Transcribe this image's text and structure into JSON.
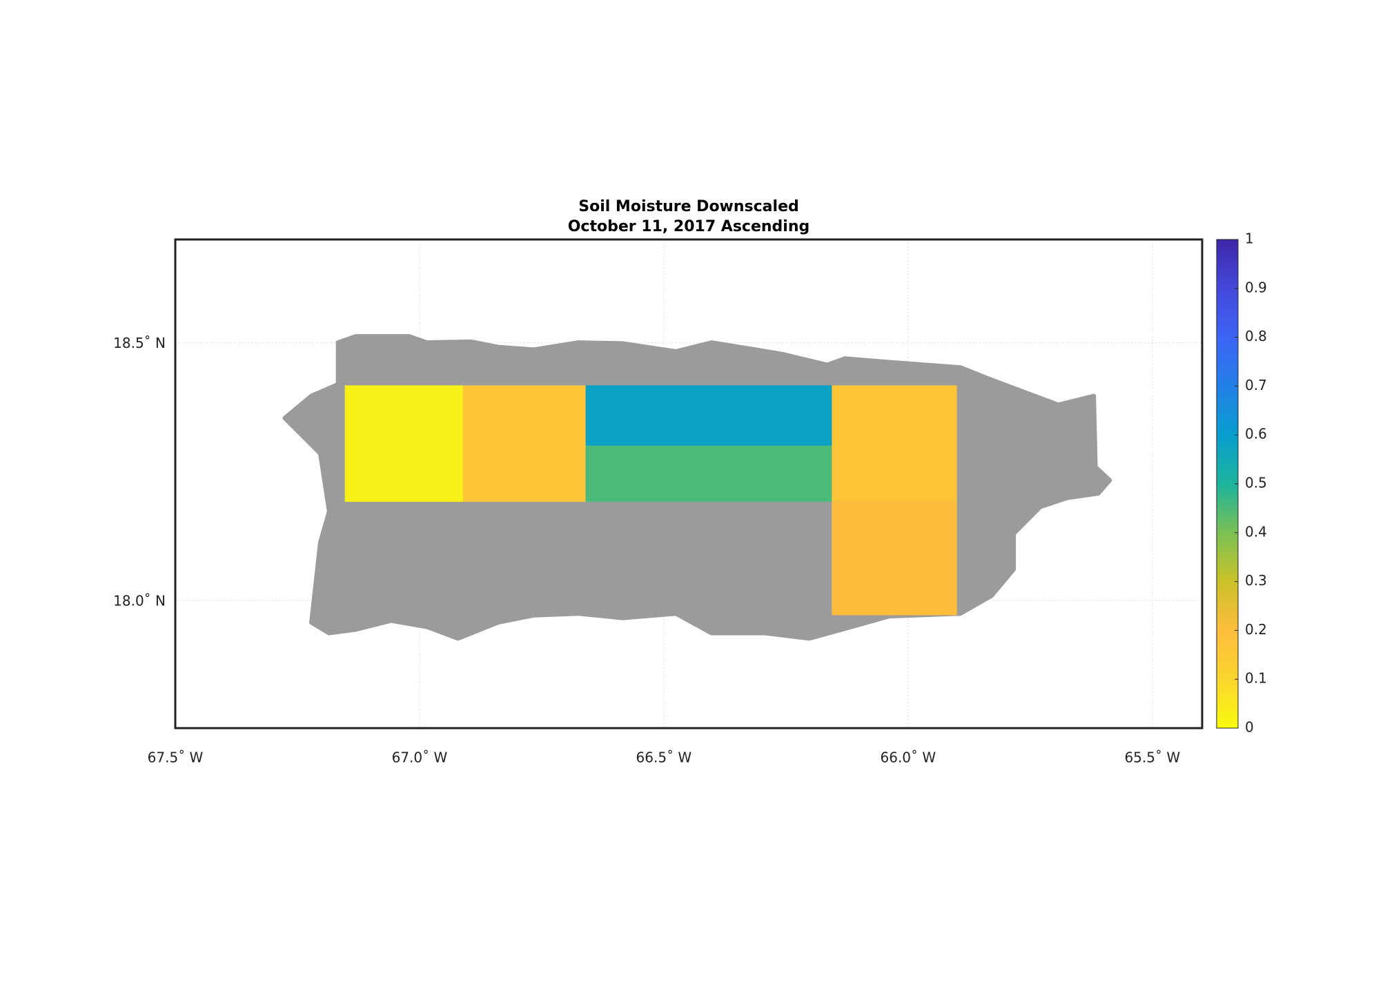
{
  "chart_data": {
    "type": "map",
    "title": [
      "Soil Moisture Downscaled",
      "October 11, 2017 Ascending"
    ],
    "xlim": [
      -67.5,
      -65.398
    ],
    "ylim": [
      17.752,
      18.7
    ],
    "xticks": [
      {
        "value": -67.5,
        "label": "67.5˚ W"
      },
      {
        "value": -67.0,
        "label": "67.0˚ W"
      },
      {
        "value": -66.5,
        "label": "66.5˚ W"
      },
      {
        "value": -66.0,
        "label": "66.0˚ W"
      },
      {
        "value": -65.5,
        "label": "65.5˚ W"
      }
    ],
    "yticks": [
      {
        "value": 18.0,
        "label": "18.0˚ N"
      },
      {
        "value": 18.5,
        "label": "18.5˚ N"
      }
    ],
    "grid": true,
    "colormap": "parula",
    "clim": [
      0,
      1
    ],
    "cticks": [
      0,
      0.1,
      0.2,
      0.3,
      0.4,
      0.5,
      0.6,
      0.7,
      0.8,
      0.9,
      1
    ],
    "tiles": {
      "lon": [
        [
          -67.153,
          -66.911
        ],
        [
          -66.911,
          -66.66
        ],
        [
          -66.66,
          -66.156
        ],
        [
          -66.66,
          -66.156
        ],
        [
          -66.156,
          -65.9
        ],
        [
          -66.156,
          -65.9
        ]
      ],
      "lat": [
        [
          18.191,
          18.417
        ],
        [
          18.191,
          18.417
        ],
        [
          18.3,
          18.417
        ],
        [
          18.191,
          18.3
        ],
        [
          18.191,
          18.417
        ],
        [
          17.971,
          18.191
        ]
      ],
      "values": [
        0.03,
        0.17,
        0.58,
        0.45,
        0.17,
        0.2
      ]
    }
  }
}
